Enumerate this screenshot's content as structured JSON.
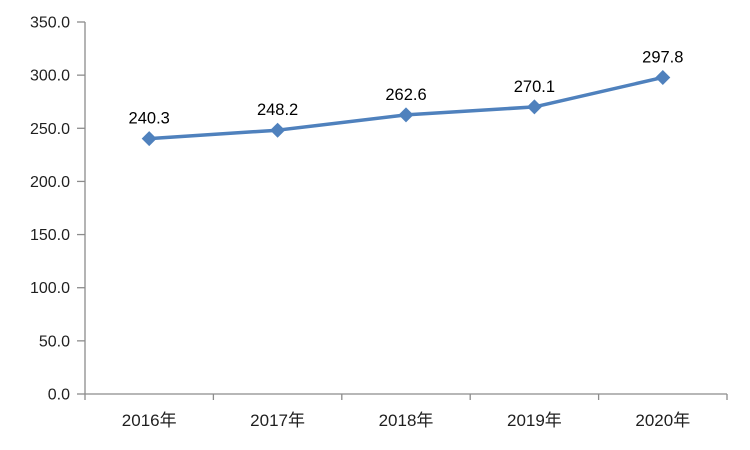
{
  "chart_data": {
    "type": "line",
    "title": "",
    "xlabel": "",
    "ylabel": "",
    "categories": [
      "2016年",
      "2017年",
      "2018年",
      "2019年",
      "2020年"
    ],
    "series": [
      {
        "name": "",
        "values": [
          240.3,
          248.2,
          262.6,
          270.1,
          297.8
        ],
        "data_labels": [
          "240.3",
          "248.2",
          "262.6",
          "270.1",
          "297.8"
        ]
      }
    ],
    "ylim": [
      0,
      350
    ],
    "ytick_step": 50,
    "ytick_labels": [
      "0.0",
      "50.0",
      "100.0",
      "150.0",
      "200.0",
      "250.0",
      "300.0",
      "350.0"
    ],
    "grid": false,
    "legend_position": "none",
    "line_color": "#4F81BD",
    "marker": "diamond",
    "axis_color": "#8C8C8C",
    "text_color": "#1f1f1f",
    "background_color": "#ffffff"
  }
}
